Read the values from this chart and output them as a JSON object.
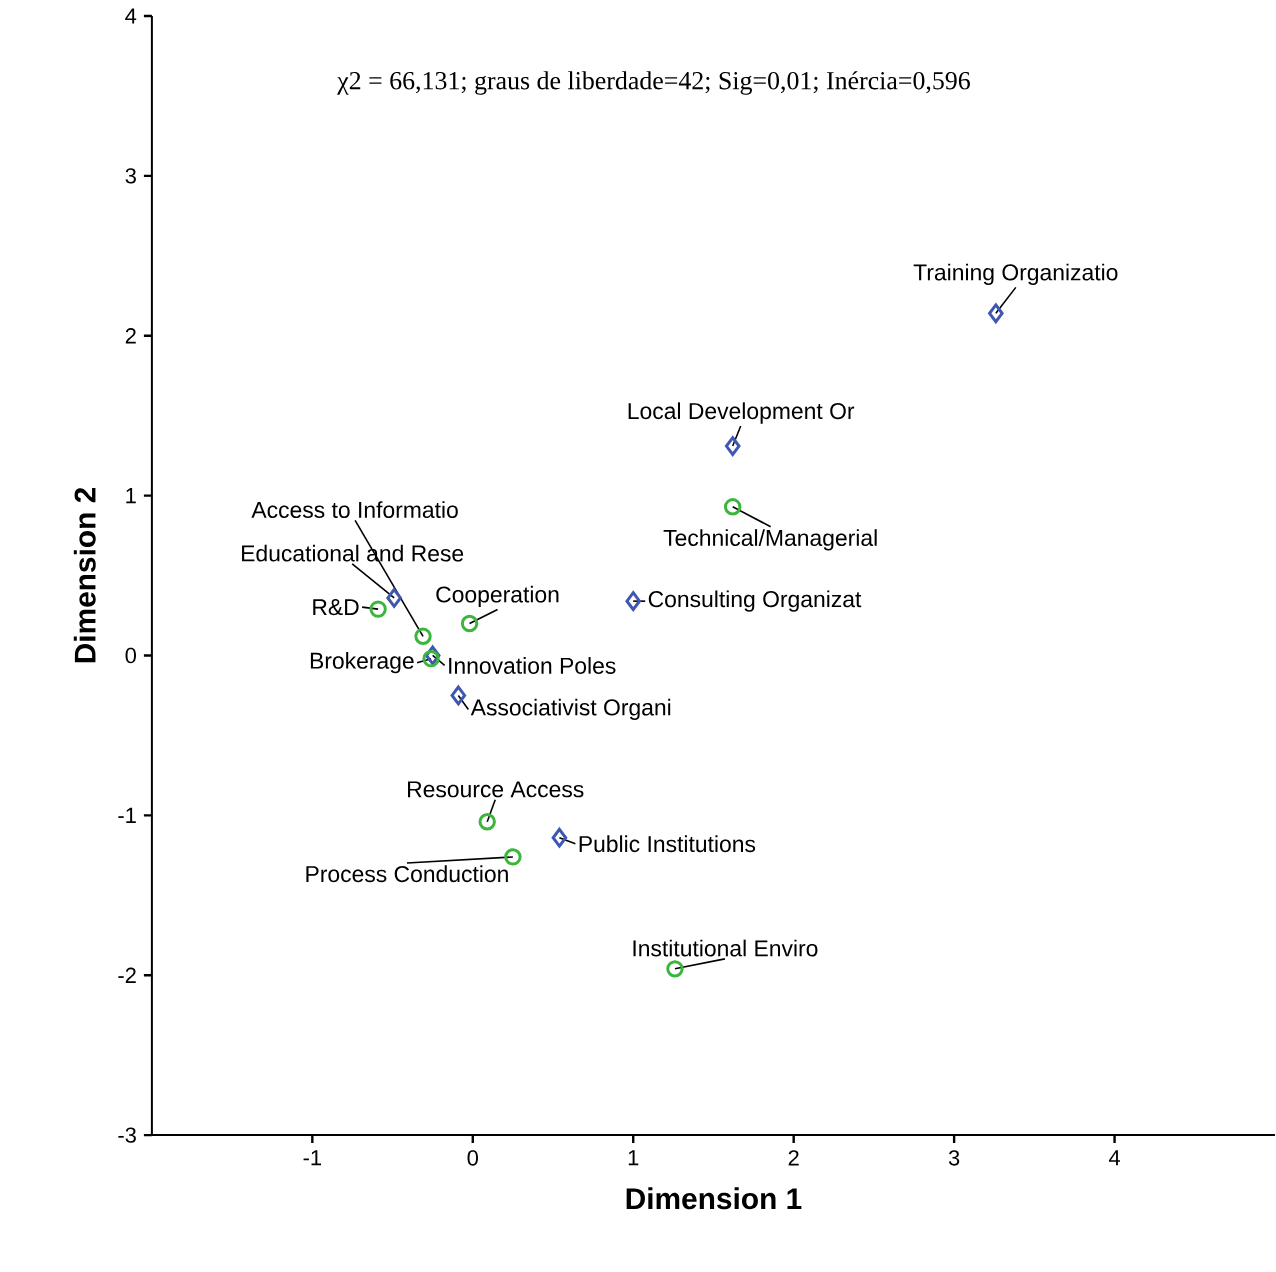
{
  "chart_data": {
    "type": "scatter",
    "xlabel": "Dimension 1",
    "ylabel": "Dimension 2",
    "xlim": [
      -2,
      5
    ],
    "ylim": [
      -3,
      4
    ],
    "xticks": [
      -1,
      0,
      1,
      2,
      3,
      4
    ],
    "yticks": [
      -3,
      -2,
      -1,
      0,
      1,
      2,
      3,
      4
    ],
    "series": [
      {
        "color": "#3f57b0",
        "marker": "diamond",
        "x": [
          3.26,
          1.62,
          1.0,
          -0.49,
          -0.25,
          -0.09,
          0.54
        ],
        "values": [
          2.14,
          1.31,
          0.34,
          0.36,
          0.0,
          -0.25,
          -1.14
        ]
      },
      {
        "color": "#3cb53c",
        "marker": "circle",
        "x": [
          1.62,
          -0.59,
          -0.02,
          -0.31,
          -0.26,
          0.09,
          0.25,
          1.26
        ],
        "values": [
          0.93,
          0.29,
          0.2,
          0.12,
          -0.02,
          -1.04,
          -1.26,
          -1.96
        ]
      }
    ],
    "annotations": [
      "χ2 = 66,131; graus de liberdade=42; Sig=0,01; Inércia=0,596",
      {
        "text": "Training Organizatio",
        "x": 3.26,
        "y": 2.14
      },
      {
        "text": "Local Development Or",
        "x": 1.62,
        "y": 1.31
      },
      {
        "text": "Consulting Organizat",
        "x": 1.0,
        "y": 0.34
      },
      {
        "text": "Educational and Rese",
        "x": -0.49,
        "y": 0.36
      },
      {
        "text": "Innovation Poles",
        "x": -0.25,
        "y": 0.0
      },
      {
        "text": "Associativist Organi",
        "x": -0.09,
        "y": -0.25
      },
      {
        "text": "Public Institutions",
        "x": 0.54,
        "y": -1.14
      },
      {
        "text": "Technical/Managerial",
        "x": 1.62,
        "y": 0.93
      },
      {
        "text": "R&D",
        "x": -0.59,
        "y": 0.29
      },
      {
        "text": "Cooperation",
        "x": -0.02,
        "y": 0.2
      },
      {
        "text": "Access to Informatio",
        "x": -0.31,
        "y": 0.12
      },
      {
        "text": "Brokerage",
        "x": -0.26,
        "y": -0.02
      },
      {
        "text": "Resource Access",
        "x": 0.09,
        "y": -1.04
      },
      {
        "text": "Process Conduction",
        "x": 0.25,
        "y": -1.26
      },
      {
        "text": "Institutional Enviro",
        "x": 1.26,
        "y": -1.96
      }
    ]
  }
}
